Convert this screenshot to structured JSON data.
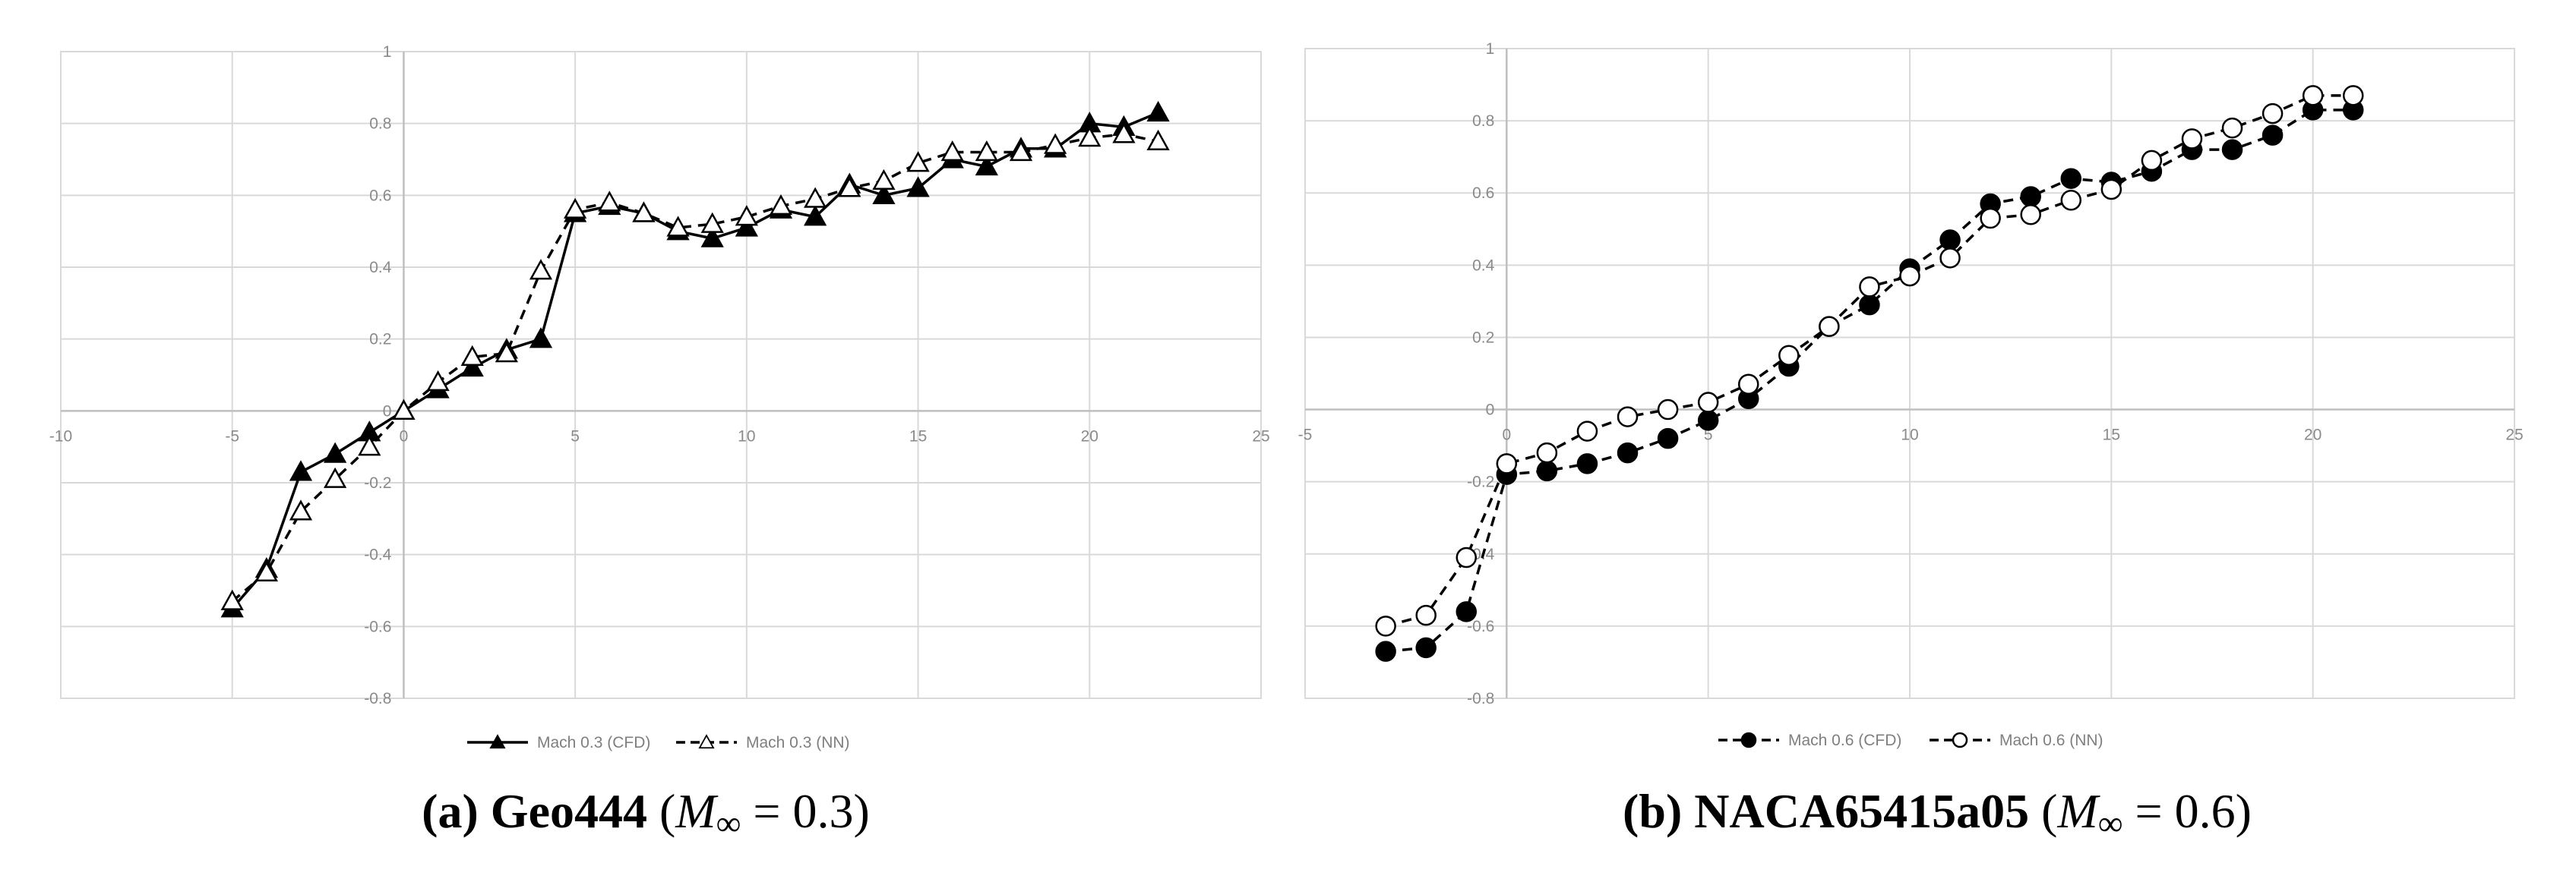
{
  "chart_data": [
    {
      "type": "line",
      "caption": {
        "label": "(a) Geo444",
        "condition_prefix": "(",
        "mach_symbol": "M",
        "inf_symbol": "∞",
        "condition_value": " = 0.3)"
      },
      "xlim": [
        -10,
        25
      ],
      "ylim": [
        -0.8,
        1
      ],
      "x_ticks": [
        -10,
        -5,
        0,
        5,
        10,
        15,
        20,
        25
      ],
      "y_ticks": [
        -0.8,
        -0.6,
        -0.4,
        -0.2,
        0,
        0.2,
        0.4,
        0.6,
        0.8,
        1
      ],
      "grid": true,
      "legend_position": "bottom",
      "series": [
        {
          "name": "Mach 0.3 (CFD)",
          "marker": "filled-triangle",
          "line": "solid",
          "x": [
            -5,
            -4,
            -3,
            -2,
            -1,
            0,
            1,
            2,
            3,
            4,
            5,
            6,
            7,
            8,
            9,
            10,
            11,
            12,
            13,
            14,
            15,
            16,
            17,
            18,
            19,
            20,
            21,
            22
          ],
          "y": [
            -0.55,
            -0.44,
            -0.17,
            -0.12,
            -0.06,
            0.0,
            0.06,
            0.12,
            0.17,
            0.2,
            0.55,
            0.57,
            0.55,
            0.5,
            0.48,
            0.51,
            0.56,
            0.54,
            0.63,
            0.6,
            0.62,
            0.7,
            0.68,
            0.73,
            0.73,
            0.8,
            0.79,
            0.83
          ]
        },
        {
          "name": "Mach 0.3 (NN)",
          "marker": "open-triangle",
          "line": "dashed",
          "x": [
            -5,
            -4,
            -3,
            -2,
            -1,
            0,
            1,
            2,
            3,
            4,
            5,
            6,
            7,
            8,
            9,
            10,
            11,
            12,
            13,
            14,
            15,
            16,
            17,
            18,
            19,
            20,
            21,
            22
          ],
          "y": [
            -0.53,
            -0.45,
            -0.28,
            -0.19,
            -0.1,
            0.0,
            0.08,
            0.15,
            0.16,
            0.39,
            0.56,
            0.58,
            0.55,
            0.51,
            0.52,
            0.54,
            0.57,
            0.59,
            0.62,
            0.64,
            0.69,
            0.72,
            0.72,
            0.72,
            0.74,
            0.76,
            0.77,
            0.75
          ]
        }
      ]
    },
    {
      "type": "line",
      "caption": {
        "label": "(b) NACA65415a05",
        "condition_prefix": "(",
        "mach_symbol": "M",
        "inf_symbol": "∞",
        "condition_value": " = 0.6)"
      },
      "xlim": [
        -5,
        25
      ],
      "ylim": [
        -0.8,
        1
      ],
      "x_ticks": [
        -5,
        0,
        5,
        10,
        15,
        20,
        25
      ],
      "y_ticks": [
        -0.8,
        -0.6,
        -0.4,
        -0.2,
        0,
        0.2,
        0.4,
        0.6,
        0.8,
        1
      ],
      "grid": true,
      "legend_position": "bottom",
      "series": [
        {
          "name": "Mach 0.6 (CFD)",
          "marker": "filled-circle",
          "line": "dashed",
          "x": [
            -3,
            -2,
            -1,
            0,
            1,
            2,
            3,
            4,
            5,
            6,
            7,
            8,
            9,
            10,
            11,
            12,
            13,
            14,
            15,
            16,
            17,
            18,
            19,
            20,
            21
          ],
          "y": [
            -0.67,
            -0.66,
            -0.56,
            -0.18,
            -0.17,
            -0.15,
            -0.12,
            -0.08,
            -0.03,
            0.03,
            0.12,
            0.23,
            0.29,
            0.39,
            0.47,
            0.57,
            0.59,
            0.64,
            0.63,
            0.66,
            0.72,
            0.72,
            0.76,
            0.83,
            0.83
          ]
        },
        {
          "name": "Mach 0.6 (NN)",
          "marker": "open-circle",
          "line": "dashed",
          "x": [
            -3,
            -2,
            -1,
            0,
            1,
            2,
            3,
            4,
            5,
            6,
            7,
            8,
            9,
            10,
            11,
            12,
            13,
            14,
            15,
            16,
            17,
            18,
            19,
            20,
            21
          ],
          "y": [
            -0.6,
            -0.57,
            -0.41,
            -0.15,
            -0.12,
            -0.06,
            -0.02,
            0.0,
            0.02,
            0.07,
            0.15,
            0.23,
            0.34,
            0.37,
            0.42,
            0.53,
            0.54,
            0.58,
            0.61,
            0.69,
            0.75,
            0.78,
            0.82,
            0.87,
            0.87
          ]
        }
      ]
    }
  ]
}
